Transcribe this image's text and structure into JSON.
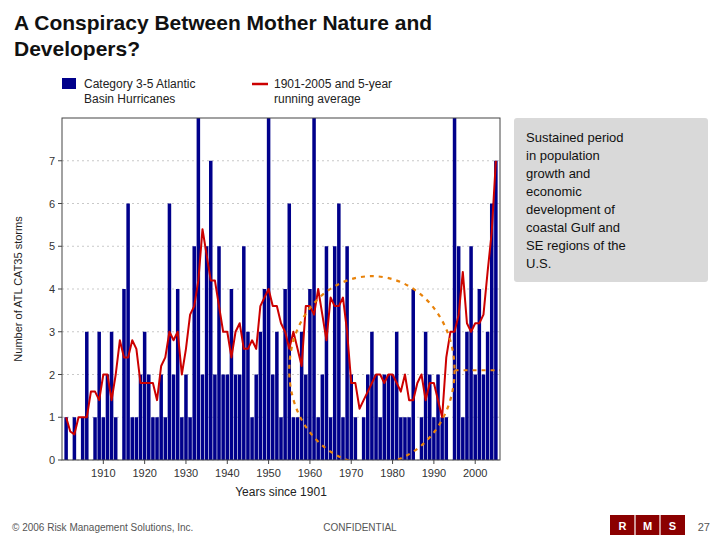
{
  "chart_data": {
    "type": "bar",
    "title": "A Conspiracy Between Mother Nature and\nDevelopers?",
    "xlabel": "Years since 1901",
    "ylabel": "Number of ATL CAT35 storms",
    "x": [
      1901,
      1902,
      1903,
      1904,
      1905,
      1906,
      1907,
      1908,
      1909,
      1910,
      1911,
      1912,
      1913,
      1914,
      1915,
      1916,
      1917,
      1918,
      1919,
      1920,
      1921,
      1922,
      1923,
      1924,
      1925,
      1926,
      1927,
      1928,
      1929,
      1930,
      1931,
      1932,
      1933,
      1934,
      1935,
      1936,
      1937,
      1938,
      1939,
      1940,
      1941,
      1942,
      1943,
      1944,
      1945,
      1946,
      1947,
      1948,
      1949,
      1950,
      1951,
      1952,
      1953,
      1954,
      1955,
      1956,
      1957,
      1958,
      1959,
      1960,
      1961,
      1962,
      1963,
      1964,
      1965,
      1966,
      1967,
      1968,
      1969,
      1970,
      1971,
      1972,
      1973,
      1974,
      1975,
      1976,
      1977,
      1978,
      1979,
      1980,
      1981,
      1982,
      1983,
      1984,
      1985,
      1986,
      1987,
      1988,
      1989,
      1990,
      1991,
      1992,
      1993,
      1994,
      1995,
      1996,
      1997,
      1998,
      1999,
      2000,
      2001,
      2002,
      2003,
      2004,
      2005
    ],
    "series": [
      {
        "name": "Category 3-5 Atlantic\nBasin Hurricanes",
        "type": "bar",
        "color": "#00008B",
        "values": [
          1,
          0,
          1,
          0,
          1,
          3,
          0,
          1,
          3,
          1,
          2,
          3,
          1,
          0,
          4,
          6,
          1,
          1,
          2,
          3,
          2,
          1,
          1,
          2,
          1,
          6,
          2,
          4,
          1,
          2,
          1,
          5,
          8,
          2,
          5,
          7,
          2,
          5,
          2,
          2,
          4,
          2,
          2,
          5,
          3,
          1,
          2,
          3,
          4,
          8,
          2,
          3,
          1,
          4,
          6,
          1,
          1,
          3,
          2,
          4,
          8,
          1,
          2,
          5,
          1,
          5,
          6,
          1,
          5,
          2,
          1,
          0,
          1,
          2,
          3,
          2,
          1,
          2,
          2,
          2,
          3,
          1,
          1,
          1,
          4,
          0,
          1,
          3,
          2,
          1,
          2,
          1,
          1,
          0,
          8,
          5,
          1,
          3,
          5,
          2,
          4,
          2,
          3,
          6,
          7
        ]
      },
      {
        "name": "1901-2005 and 5-year\nrunning average",
        "type": "line",
        "color": "#CC0000",
        "values": [
          1,
          0.6666666666666666,
          0.6,
          1,
          1,
          1,
          1.6,
          1.6,
          1.4,
          2,
          2,
          1.4,
          2,
          2.8,
          2.4,
          2.4,
          2.8,
          2.6,
          1.8,
          1.8,
          1.8,
          1.8,
          1.4,
          2.2,
          2.4,
          3,
          2.8,
          3,
          2,
          2.6,
          3.4,
          3.6,
          4.2,
          5.4,
          4.8,
          4.2,
          4.2,
          3.6,
          3,
          3,
          2.4,
          3,
          3.2,
          2.6,
          2.6,
          2.8,
          2.6,
          3.6,
          3.8,
          4,
          3.6,
          3.6,
          3.2,
          3,
          2.6,
          3,
          2.6,
          2.2,
          3.6,
          3.6,
          3.4,
          4,
          3.4,
          2.8,
          3.8,
          3.6,
          3.6,
          3.8,
          3,
          1.8,
          1.8,
          1.2,
          1.4,
          1.6,
          1.8,
          2,
          2,
          1.8,
          2,
          2,
          1.8,
          1.6,
          2,
          1.4,
          1.4,
          1.8,
          2,
          1.4,
          1.8,
          1.8,
          1.4,
          1,
          2.4,
          3,
          3,
          3.4,
          4.4,
          3.2,
          3,
          3.2,
          3.2,
          3.4,
          4.4,
          5.333333333333333,
          7
        ]
      }
    ],
    "xlim": [
      1900,
      2006
    ],
    "xticks": [
      1910,
      1920,
      1930,
      1940,
      1950,
      1960,
      1970,
      1980,
      1990,
      2000
    ],
    "ylim": [
      0,
      8
    ],
    "yticks": [
      0,
      1,
      2,
      3,
      4,
      5,
      6,
      7
    ],
    "grid": true,
    "legend": "top",
    "annotation": "Sustained period\nin population\ngrowth and\neconomic\ndevelopment of\ncoastal Gulf and\nSE regions of the\nU.S.",
    "highlight": {
      "x_center": 1975,
      "y_center": 2.1,
      "x_width": 40,
      "y_height": 4.4,
      "color": "#E8820A"
    },
    "footer": [
      "© 2006 Risk Management Solutions, Inc.",
      "CONFIDENTIAL",
      "27"
    ],
    "logo": {
      "letters": [
        "R",
        "M",
        "S"
      ],
      "color": "#8B0000"
    }
  }
}
